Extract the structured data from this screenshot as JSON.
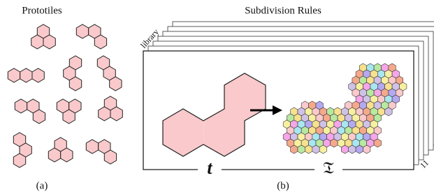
{
  "panels": [
    {
      "title": "Prototiles",
      "caption": "(a)"
    },
    {
      "title": "Subdivision Rules",
      "caption": "(b)",
      "stack_label": "library",
      "stack_count": "11",
      "tile_label": "t",
      "subdivision_label": "𝔗"
    }
  ]
}
